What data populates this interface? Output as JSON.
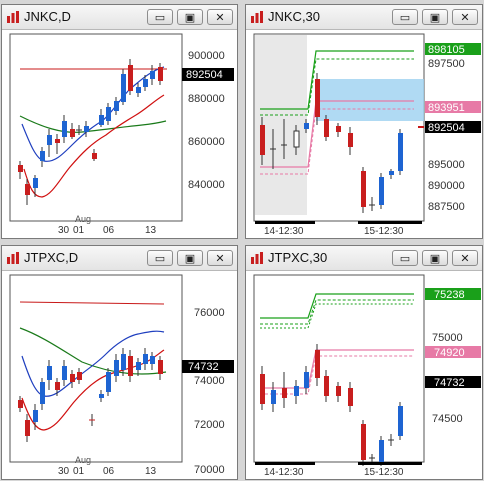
{
  "windows": [
    {
      "id": "jnkc-d",
      "title": "JNKC,D",
      "y_labels": [
        "900000",
        "880000",
        "860000",
        "840000"
      ],
      "price_tag": "892504",
      "price_tag_color": "#000000",
      "x_labels": [
        "30",
        "01",
        "06",
        "13"
      ],
      "x_sub_label": "Aug",
      "colors": {
        "upper_band": "#1f3fbf",
        "lower_band": "#d01010",
        "ma_long": "#1a7a1a",
        "ref_line": "#c81818",
        "candle_up": "#1e64d2",
        "candle_down": "#c81e1e"
      }
    },
    {
      "id": "jnkc-30",
      "title": "JNKC,30",
      "y_labels": [
        "897500",
        "895000",
        "890000",
        "887500"
      ],
      "price_tags": [
        {
          "text": "898105",
          "color": "#1aa01a"
        },
        {
          "text": "893951",
          "color": "#e77aa6"
        },
        {
          "text": "892504",
          "color": "#000000"
        }
      ],
      "x_labels": [
        "14-12:30",
        "15-12:30"
      ],
      "colors": {
        "green_band": "#1aa01a",
        "pink_band": "#e77aa6",
        "cloud": "#6ab7e8"
      }
    },
    {
      "id": "jtpxc-d",
      "title": "JTPXC,D",
      "y_labels": [
        "76000",
        "74000",
        "72000",
        "70000"
      ],
      "price_tag": "74732",
      "price_tag_color": "#000000",
      "x_labels": [
        "30",
        "01",
        "06",
        "13"
      ],
      "x_sub_label": "Aug"
    },
    {
      "id": "jtpxc-30",
      "title": "JTPXC,30",
      "y_labels": [
        "75000",
        "74500"
      ],
      "price_tags": [
        {
          "text": "75238",
          "color": "#1aa01a"
        },
        {
          "text": "74920",
          "color": "#e77aa6"
        },
        {
          "text": "74732",
          "color": "#000000"
        }
      ],
      "x_labels": [
        "14-12:30",
        "15-12:30"
      ]
    }
  ],
  "buttons": {
    "minimize": "▭",
    "restore": "▣",
    "close": "✕"
  }
}
